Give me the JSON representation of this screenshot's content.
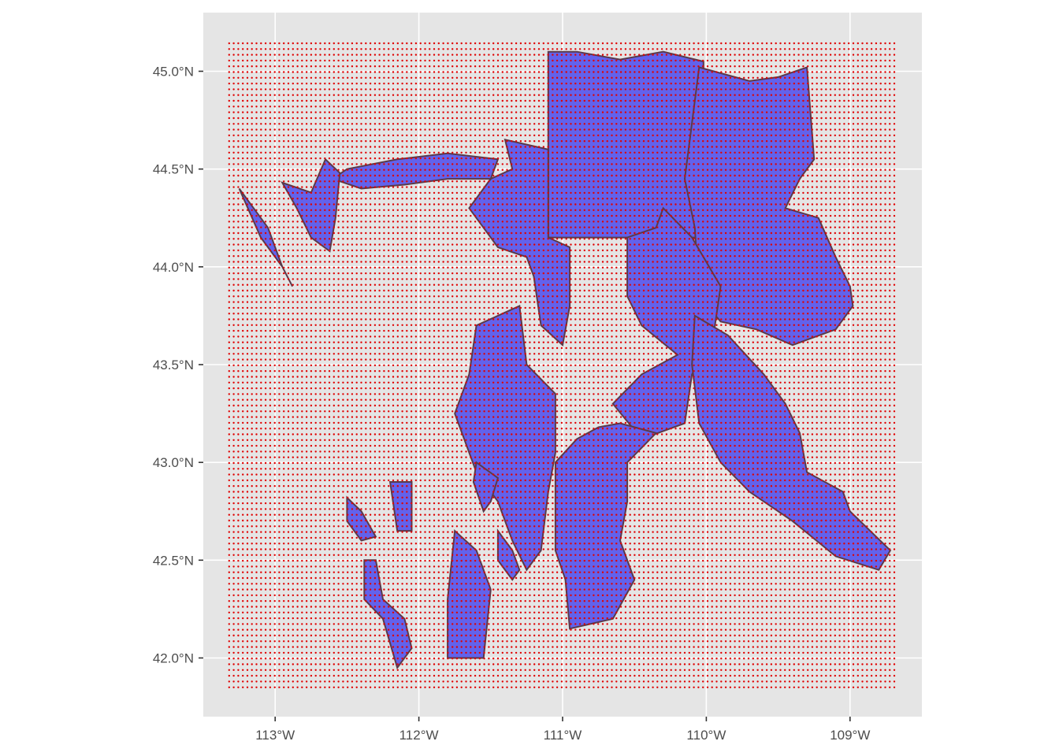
{
  "chart_data": {
    "type": "map",
    "projection": "geographic lon/lat",
    "xlim": [
      -113.5,
      -108.5
    ],
    "ylim": [
      41.7,
      45.3
    ],
    "x_ticks": [
      {
        "value": -113,
        "label": "113°W"
      },
      {
        "value": -112,
        "label": "112°W"
      },
      {
        "value": -111,
        "label": "111°W"
      },
      {
        "value": -110,
        "label": "110°W"
      },
      {
        "value": -109,
        "label": "109°W"
      }
    ],
    "y_ticks": [
      {
        "value": 42.0,
        "label": "42.0°N"
      },
      {
        "value": 42.5,
        "label": "42.5°N"
      },
      {
        "value": 43.0,
        "label": "43.0°N"
      },
      {
        "value": 43.5,
        "label": "43.5°N"
      },
      {
        "value": 44.0,
        "label": "44.0°N"
      },
      {
        "value": 44.5,
        "label": "44.5°N"
      },
      {
        "value": 45.0,
        "label": "45.0°N"
      }
    ],
    "grid": true,
    "point_grid": {
      "lon_range": [
        -113.32,
        -108.68
      ],
      "lat_range": [
        41.85,
        45.15
      ],
      "lon_step": 0.0317,
      "lat_step": 0.0294,
      "color": "#e00000"
    },
    "polygons": [
      {
        "name": "yellowstone-rect",
        "coords": [
          [
            -111.1,
            45.1
          ],
          [
            -111.1,
            44.15
          ],
          [
            -110.02,
            44.15
          ],
          [
            -110.02,
            45.05
          ],
          [
            -110.3,
            45.1
          ],
          [
            -110.6,
            45.06
          ],
          [
            -110.9,
            45.1
          ]
        ]
      },
      {
        "name": "northeast-forest",
        "coords": [
          [
            -110.05,
            45.02
          ],
          [
            -109.7,
            44.95
          ],
          [
            -109.5,
            44.97
          ],
          [
            -109.3,
            45.02
          ],
          [
            -109.25,
            44.55
          ],
          [
            -109.35,
            44.45
          ],
          [
            -109.45,
            44.3
          ],
          [
            -109.22,
            44.25
          ],
          [
            -109.1,
            44.05
          ],
          [
            -109.0,
            43.9
          ],
          [
            -108.98,
            43.8
          ],
          [
            -109.1,
            43.68
          ],
          [
            -109.4,
            43.6
          ],
          [
            -109.65,
            43.68
          ],
          [
            -109.9,
            43.72
          ],
          [
            -110.05,
            43.85
          ],
          [
            -110.08,
            44.2
          ],
          [
            -110.15,
            44.45
          ],
          [
            -110.12,
            44.62
          ]
        ]
      },
      {
        "name": "east-central-forest",
        "coords": [
          [
            -110.3,
            44.3
          ],
          [
            -110.1,
            44.15
          ],
          [
            -109.9,
            43.9
          ],
          [
            -109.95,
            43.65
          ],
          [
            -110.1,
            43.45
          ],
          [
            -110.15,
            43.2
          ],
          [
            -110.45,
            43.12
          ],
          [
            -110.65,
            43.3
          ],
          [
            -110.45,
            43.45
          ],
          [
            -110.2,
            43.55
          ],
          [
            -110.45,
            43.7
          ],
          [
            -110.55,
            43.85
          ],
          [
            -110.55,
            44.15
          ],
          [
            -110.35,
            44.2
          ]
        ]
      },
      {
        "name": "wind-river-forest",
        "coords": [
          [
            -110.08,
            43.75
          ],
          [
            -109.85,
            43.65
          ],
          [
            -109.6,
            43.45
          ],
          [
            -109.45,
            43.3
          ],
          [
            -109.35,
            43.15
          ],
          [
            -109.3,
            42.95
          ],
          [
            -109.05,
            42.85
          ],
          [
            -109.0,
            42.75
          ],
          [
            -108.72,
            42.55
          ],
          [
            -108.8,
            42.45
          ],
          [
            -109.1,
            42.52
          ],
          [
            -109.4,
            42.7
          ],
          [
            -109.7,
            42.85
          ],
          [
            -109.9,
            43.0
          ],
          [
            -110.05,
            43.2
          ],
          [
            -110.1,
            43.5
          ]
        ]
      },
      {
        "name": "bridger-teton",
        "coords": [
          [
            -110.6,
            43.2
          ],
          [
            -110.35,
            43.15
          ],
          [
            -110.55,
            43.0
          ],
          [
            -110.55,
            42.8
          ],
          [
            -110.6,
            42.6
          ],
          [
            -110.5,
            42.4
          ],
          [
            -110.65,
            42.2
          ],
          [
            -110.95,
            42.15
          ],
          [
            -110.98,
            42.4
          ],
          [
            -111.05,
            42.55
          ],
          [
            -111.05,
            43.0
          ],
          [
            -110.9,
            43.12
          ],
          [
            -110.75,
            43.18
          ]
        ]
      },
      {
        "name": "caribou-targhee-north",
        "coords": [
          [
            -111.4,
            44.65
          ],
          [
            -111.1,
            44.6
          ],
          [
            -111.1,
            44.15
          ],
          [
            -110.95,
            44.1
          ],
          [
            -110.95,
            43.8
          ],
          [
            -111.0,
            43.6
          ],
          [
            -111.15,
            43.7
          ],
          [
            -111.2,
            43.95
          ],
          [
            -111.25,
            44.05
          ],
          [
            -111.45,
            44.1
          ],
          [
            -111.65,
            44.3
          ],
          [
            -111.5,
            44.45
          ],
          [
            -111.35,
            44.5
          ]
        ]
      },
      {
        "name": "targhee-west-strip",
        "coords": [
          [
            -111.45,
            44.55
          ],
          [
            -111.8,
            44.58
          ],
          [
            -112.15,
            44.55
          ],
          [
            -112.5,
            44.5
          ],
          [
            -112.6,
            44.45
          ],
          [
            -112.4,
            44.4
          ],
          [
            -112.1,
            44.42
          ],
          [
            -111.8,
            44.45
          ],
          [
            -111.5,
            44.45
          ]
        ]
      },
      {
        "name": "caribou-central",
        "coords": [
          [
            -111.6,
            43.7
          ],
          [
            -111.3,
            43.8
          ],
          [
            -111.25,
            43.5
          ],
          [
            -111.05,
            43.35
          ],
          [
            -111.05,
            43.05
          ],
          [
            -111.1,
            42.85
          ],
          [
            -111.15,
            42.55
          ],
          [
            -111.25,
            42.45
          ],
          [
            -111.35,
            42.6
          ],
          [
            -111.45,
            42.8
          ],
          [
            -111.6,
            42.95
          ],
          [
            -111.75,
            43.25
          ],
          [
            -111.65,
            43.45
          ]
        ]
      },
      {
        "name": "west-finger",
        "coords": [
          [
            -113.25,
            44.4
          ],
          [
            -113.05,
            44.2
          ],
          [
            -112.95,
            44.0
          ],
          [
            -112.88,
            43.9
          ],
          [
            -112.95,
            44.0
          ],
          [
            -113.1,
            44.15
          ]
        ]
      },
      {
        "name": "west-block-a",
        "coords": [
          [
            -112.95,
            44.43
          ],
          [
            -112.75,
            44.38
          ],
          [
            -112.65,
            44.55
          ],
          [
            -112.55,
            44.48
          ],
          [
            -112.58,
            44.25
          ],
          [
            -112.62,
            44.08
          ],
          [
            -112.75,
            44.15
          ],
          [
            -112.85,
            44.3
          ]
        ]
      },
      {
        "name": "south-small-a",
        "coords": [
          [
            -112.5,
            42.82
          ],
          [
            -112.4,
            42.75
          ],
          [
            -112.3,
            42.62
          ],
          [
            -112.4,
            42.6
          ],
          [
            -112.5,
            42.7
          ]
        ]
      },
      {
        "name": "south-small-b",
        "coords": [
          [
            -112.2,
            42.9
          ],
          [
            -112.05,
            42.9
          ],
          [
            -112.05,
            42.65
          ],
          [
            -112.15,
            42.65
          ]
        ]
      },
      {
        "name": "south-small-c",
        "coords": [
          [
            -112.38,
            42.5
          ],
          [
            -112.3,
            42.5
          ],
          [
            -112.25,
            42.3
          ],
          [
            -112.1,
            42.2
          ],
          [
            -112.05,
            42.05
          ],
          [
            -112.15,
            41.95
          ],
          [
            -112.25,
            42.2
          ],
          [
            -112.38,
            42.3
          ]
        ]
      },
      {
        "name": "south-small-d",
        "coords": [
          [
            -111.75,
            42.65
          ],
          [
            -111.6,
            42.55
          ],
          [
            -111.5,
            42.35
          ],
          [
            -111.55,
            42.0
          ],
          [
            -111.8,
            42.0
          ],
          [
            -111.8,
            42.3
          ]
        ]
      },
      {
        "name": "south-small-e",
        "coords": [
          [
            -111.45,
            42.65
          ],
          [
            -111.35,
            42.55
          ],
          [
            -111.3,
            42.45
          ],
          [
            -111.35,
            42.4
          ],
          [
            -111.45,
            42.5
          ]
        ]
      },
      {
        "name": "south-small-f",
        "coords": [
          [
            -111.6,
            43.0
          ],
          [
            -111.45,
            42.92
          ],
          [
            -111.5,
            42.8
          ],
          [
            -111.55,
            42.75
          ],
          [
            -111.62,
            42.9
          ]
        ]
      }
    ]
  }
}
